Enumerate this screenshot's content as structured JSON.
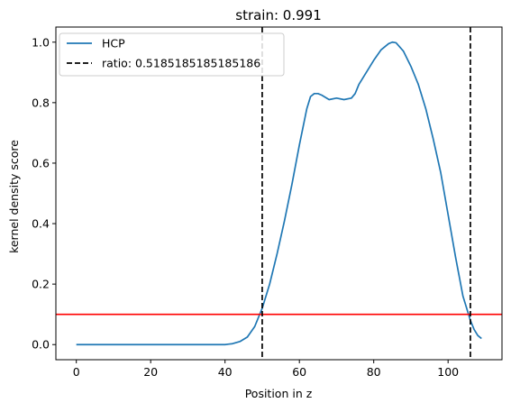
{
  "chart_data": {
    "type": "line",
    "title": "strain: 0.991",
    "xlabel": "Position in z",
    "ylabel": "kernel density score",
    "xlim": [
      -5.5,
      114.5
    ],
    "ylim": [
      -0.05,
      1.05
    ],
    "xticks": [
      0,
      20,
      40,
      60,
      80,
      100
    ],
    "yticks": [
      0.0,
      0.2,
      0.4,
      0.6,
      0.8,
      1.0
    ],
    "xtick_labels": [
      "0",
      "20",
      "40",
      "60",
      "80",
      "100"
    ],
    "ytick_labels": [
      "0.0",
      "0.2",
      "0.4",
      "0.6",
      "0.8",
      "1.0"
    ],
    "grid": false,
    "legend_position": "top-left",
    "series": [
      {
        "name": "HCP",
        "color": "#1f77b4",
        "style": "solid",
        "x": [
          0,
          10,
          20,
          30,
          40,
          42,
          44,
          46,
          48,
          50,
          52,
          54,
          56,
          58,
          60,
          62,
          63,
          64,
          65,
          66,
          68,
          70,
          72,
          74,
          75,
          76,
          78,
          80,
          82,
          84,
          85,
          86,
          88,
          90,
          92,
          94,
          96,
          98,
          100,
          102,
          104,
          106,
          107,
          108,
          109
        ],
        "y": [
          0.0,
          0.0,
          0.0,
          0.0,
          0.0,
          0.003,
          0.01,
          0.025,
          0.06,
          0.12,
          0.2,
          0.3,
          0.41,
          0.53,
          0.66,
          0.78,
          0.82,
          0.83,
          0.83,
          0.825,
          0.81,
          0.815,
          0.81,
          0.815,
          0.83,
          0.86,
          0.9,
          0.94,
          0.975,
          0.995,
          1.0,
          0.998,
          0.97,
          0.92,
          0.86,
          0.78,
          0.68,
          0.57,
          0.43,
          0.29,
          0.16,
          0.08,
          0.05,
          0.03,
          0.02
        ]
      }
    ],
    "vlines": [
      {
        "name": "ratio: 0.5185185185185186",
        "x": 50,
        "color": "#000000",
        "style": "dashed"
      },
      {
        "x": 106,
        "color": "#000000",
        "style": "dashed"
      }
    ],
    "hlines": [
      {
        "y": 0.1,
        "color": "#ff0000",
        "style": "solid"
      }
    ]
  }
}
